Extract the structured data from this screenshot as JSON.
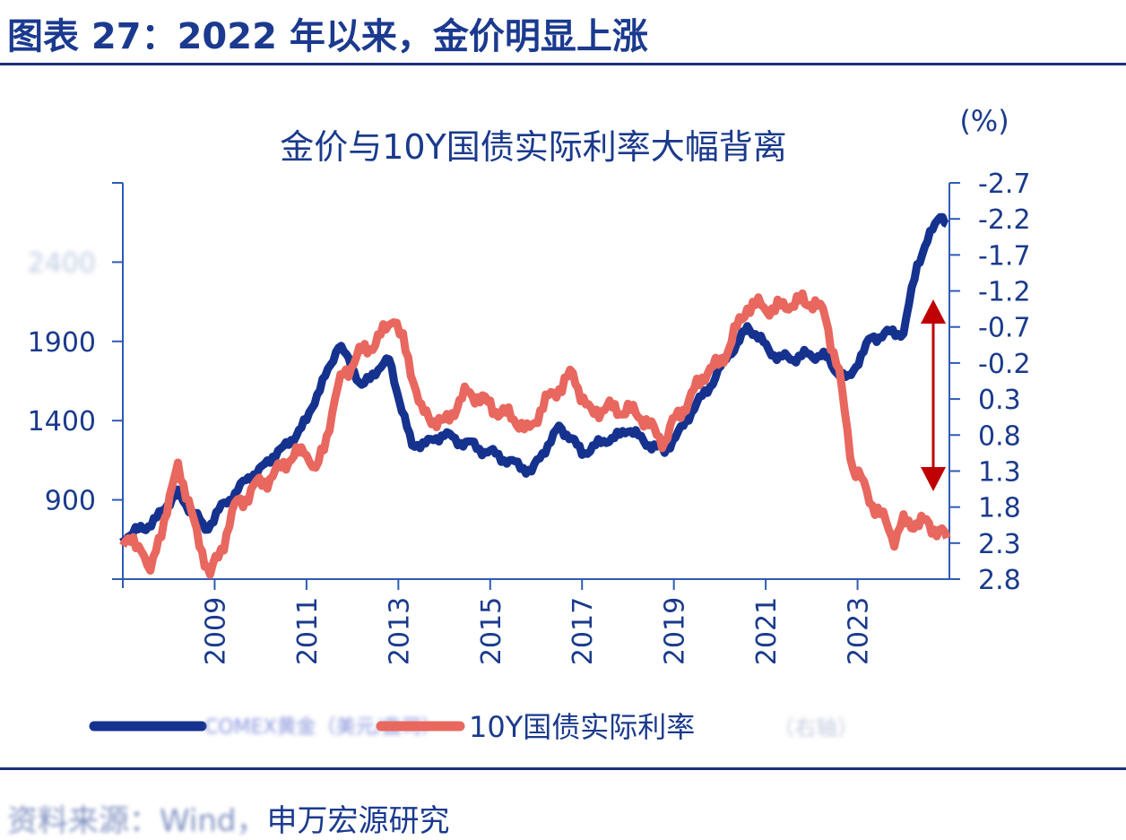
{
  "figure_title": "图表 27：2022 年以来，金价明显上涨",
  "source": {
    "blurred_prefix": "资料来源：Wind，",
    "label": "申万宏源研究"
  },
  "colors": {
    "gold": "#15328f",
    "rate": "#e8675f",
    "arrow": "#c00000",
    "axis": "#2f5bb5",
    "text": "#1a3a8c"
  },
  "chart_data": {
    "type": "line",
    "title": "金价与10Y国债实际利率大幅背离",
    "right_unit": "(%)",
    "grid": false,
    "legend_placement": "bottom",
    "x_ticks": [
      "2009",
      "2011",
      "2013",
      "2015",
      "2017",
      "2019",
      "2021",
      "2023"
    ],
    "x_range": [
      2007.0,
      2025.0
    ],
    "left_axis": {
      "ticks": [
        "900",
        "1400",
        "1900"
      ],
      "blurred_ticks": [
        "2400"
      ],
      "range": [
        400,
        2900
      ],
      "step": 500
    },
    "right_axis": {
      "ticks": [
        "-2.7",
        "-2.2",
        "-1.7",
        "-1.2",
        "-0.7",
        "-0.2",
        "0.3",
        "0.8",
        "1.3",
        "1.8",
        "2.3",
        "2.8"
      ],
      "range": [
        -2.7,
        2.8
      ],
      "inverted": true
    },
    "series": [
      {
        "name": "COMEX黄金",
        "axis": "left",
        "x": [
          2007.0,
          2007.5,
          2008.2,
          2008.8,
          2009.5,
          2010.5,
          2011.0,
          2011.7,
          2012.2,
          2012.8,
          2013.3,
          2014.0,
          2015.0,
          2015.9,
          2016.5,
          2017.0,
          2018.0,
          2018.8,
          2019.5,
          2020.6,
          2021.3,
          2022.2,
          2022.8,
          2023.3,
          2024.0,
          2024.3,
          2024.8,
          2024.95
        ],
        "y": [
          660,
          720,
          940,
          720,
          970,
          1230,
          1400,
          1880,
          1620,
          1790,
          1230,
          1310,
          1200,
          1080,
          1360,
          1200,
          1340,
          1200,
          1500,
          1990,
          1790,
          1820,
          1650,
          1930,
          1960,
          2380,
          2720,
          2640
        ]
      },
      {
        "name": "10Y国债实际利率",
        "axis": "right",
        "x": [
          2007.0,
          2007.4,
          2007.6,
          2008.2,
          2008.9,
          2009.5,
          2010.5,
          2011.0,
          2011.2,
          2011.8,
          2012.5,
          2012.9,
          2013.1,
          2013.5,
          2014.0,
          2014.5,
          2015.0,
          2015.8,
          2016.5,
          2016.8,
          2017.2,
          2018.0,
          2018.8,
          2019.5,
          2020.2,
          2020.6,
          2021.2,
          2021.8,
          2022.3,
          2022.6,
          2022.9,
          2023.2,
          2023.8,
          2024.0,
          2024.5,
          2024.95
        ],
        "y": [
          2.23,
          2.35,
          2.72,
          1.23,
          2.78,
          1.73,
          1.23,
          0.98,
          1.35,
          -0.08,
          -0.51,
          -0.82,
          -0.51,
          0.48,
          0.61,
          0.24,
          0.36,
          0.73,
          0.11,
          -0.01,
          0.48,
          0.42,
          0.86,
          0.11,
          -0.39,
          -1.01,
          -0.95,
          -1.07,
          -0.88,
          -0.01,
          1.23,
          1.6,
          2.23,
          2.04,
          1.98,
          2.23
        ]
      }
    ],
    "legend": [
      {
        "label": "COMEX黄金（美元/盎司）",
        "blurred": true
      },
      {
        "label": "10Y国债实际利率",
        "suffix": "（右轴）"
      }
    ],
    "annotation": "double-headed arrow showing divergence in 2024"
  }
}
